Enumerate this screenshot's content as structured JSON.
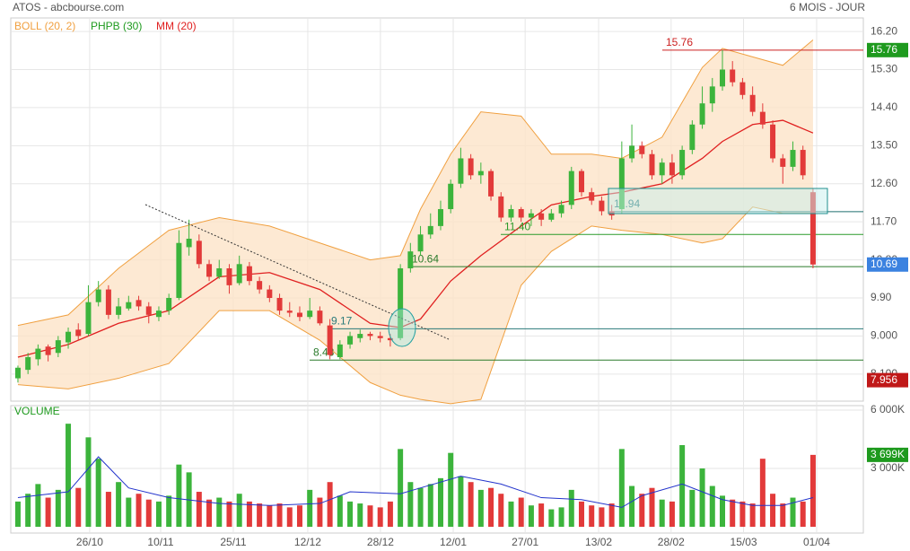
{
  "chart_data": {
    "type": "candlestick",
    "title": "ATOS - abcbourse.com",
    "period": "6 MOIS - JOUR",
    "candles": {
      "up_color": "#3cb43c",
      "down_color": "#e23a3a",
      "open": [
        8.0,
        8.2,
        8.45,
        8.75,
        8.6,
        8.85,
        9.15,
        9.05,
        9.8,
        10.1,
        9.5,
        9.65,
        9.85,
        9.7,
        9.45,
        9.6,
        9.9,
        11.1,
        11.25,
        10.7,
        10.4,
        10.6,
        10.25,
        10.65,
        10.3,
        10.1,
        9.9,
        9.6,
        9.55,
        9.45,
        9.6,
        9.25,
        8.5,
        8.8,
        8.95,
        9.05,
        9.0,
        8.95,
        8.95,
        10.6,
        11.0,
        11.4,
        11.6,
        12.0,
        12.6,
        13.2,
        12.8,
        12.9,
        12.3,
        11.8,
        12.0,
        11.8,
        11.9,
        11.75,
        11.9,
        12.1,
        12.9,
        12.4,
        12.2,
        11.95,
        12.0,
        13.2,
        13.5,
        13.3,
        12.8,
        13.1,
        12.8,
        13.4,
        14.0,
        14.5,
        14.9,
        15.3,
        15.0,
        14.7,
        14.3,
        14.0,
        13.2,
        13.0,
        13.4,
        12.4
      ],
      "high": [
        8.3,
        8.6,
        8.8,
        8.8,
        9.0,
        9.2,
        9.3,
        10.2,
        10.3,
        10.2,
        9.9,
        9.95,
        9.95,
        9.8,
        9.7,
        10.0,
        11.5,
        11.75,
        11.4,
        10.8,
        10.8,
        10.7,
        10.9,
        10.75,
        10.4,
        10.2,
        10.0,
        9.8,
        9.7,
        9.9,
        9.7,
        9.4,
        8.9,
        9.1,
        9.15,
        9.1,
        9.1,
        9.05,
        10.7,
        11.2,
        11.6,
        11.9,
        12.2,
        12.7,
        13.45,
        13.3,
        13.1,
        12.95,
        12.4,
        12.1,
        12.05,
        12.0,
        12.0,
        12.0,
        12.2,
        13.0,
        12.95,
        12.5,
        12.3,
        12.1,
        13.6,
        14.0,
        13.6,
        13.4,
        13.2,
        13.3,
        13.5,
        14.1,
        14.9,
        15.1,
        15.76,
        15.5,
        15.1,
        14.9,
        14.5,
        14.1,
        13.3,
        13.6,
        13.5,
        12.5
      ],
      "low": [
        7.9,
        8.1,
        8.3,
        8.4,
        8.5,
        8.7,
        8.9,
        9.0,
        9.7,
        9.4,
        9.4,
        9.6,
        9.6,
        9.3,
        9.35,
        9.5,
        9.85,
        10.9,
        10.6,
        10.3,
        10.35,
        10.0,
        10.2,
        10.2,
        10.0,
        9.8,
        9.5,
        9.45,
        9.35,
        9.4,
        9.25,
        8.45,
        8.45,
        8.7,
        8.85,
        8.9,
        8.85,
        8.75,
        8.9,
        10.5,
        10.9,
        11.3,
        11.5,
        11.9,
        12.5,
        12.7,
        12.6,
        12.2,
        11.7,
        11.7,
        11.7,
        11.6,
        11.6,
        11.7,
        11.8,
        12.0,
        12.3,
        12.1,
        11.85,
        11.75,
        11.9,
        13.1,
        13.2,
        12.7,
        12.6,
        12.6,
        12.7,
        13.3,
        13.9,
        14.3,
        14.8,
        14.9,
        14.6,
        14.2,
        13.9,
        13.1,
        12.6,
        12.9,
        12.7,
        10.6
      ],
      "close": [
        8.25,
        8.5,
        8.7,
        8.55,
        8.9,
        9.1,
        9.0,
        9.8,
        10.1,
        9.5,
        9.7,
        9.8,
        9.7,
        9.5,
        9.6,
        9.9,
        11.2,
        11.3,
        10.7,
        10.4,
        10.6,
        10.2,
        10.7,
        10.3,
        10.1,
        9.9,
        9.6,
        9.55,
        9.45,
        9.6,
        9.3,
        8.55,
        8.8,
        9.0,
        9.05,
        9.0,
        8.95,
        8.9,
        10.6,
        11.0,
        11.4,
        11.6,
        12.0,
        12.6,
        13.2,
        12.8,
        12.9,
        12.3,
        11.8,
        12.0,
        11.8,
        11.9,
        11.75,
        11.9,
        12.1,
        12.9,
        12.4,
        12.2,
        11.95,
        11.85,
        13.2,
        13.5,
        13.3,
        12.8,
        13.1,
        12.8,
        13.4,
        14.0,
        14.5,
        14.9,
        15.3,
        15.0,
        14.7,
        14.3,
        14.0,
        13.2,
        13.0,
        13.4,
        12.8,
        10.69
      ]
    },
    "bollinger": {
      "name": "BOLL (20, 2)",
      "color": "#f0a040",
      "fill": "#fde3c8",
      "x": [
        0,
        5,
        10,
        15,
        20,
        25,
        30,
        35,
        38,
        40,
        43,
        46,
        50,
        53,
        57,
        60,
        64,
        68,
        70,
        73,
        76,
        79
      ],
      "upper": [
        9.25,
        9.5,
        10.6,
        11.5,
        11.8,
        11.6,
        11.2,
        10.8,
        10.9,
        12.0,
        13.3,
        14.3,
        14.2,
        13.3,
        13.3,
        13.2,
        13.7,
        15.35,
        15.8,
        15.6,
        15.4,
        16.0
      ],
      "lower": [
        7.85,
        7.75,
        8.0,
        8.35,
        9.6,
        9.6,
        8.9,
        7.9,
        7.6,
        7.5,
        7.4,
        7.5,
        10.2,
        11.0,
        11.6,
        11.5,
        11.4,
        11.2,
        11.3,
        12.05,
        11.9,
        11.9
      ]
    },
    "phpb": {
      "name": "PHPB (30)",
      "color": "#1e9a1e"
    },
    "mm": {
      "name": "MM (20)",
      "color": "#e02020",
      "x": [
        0,
        5,
        10,
        15,
        20,
        25,
        30,
        35,
        38,
        40,
        43,
        46,
        50,
        53,
        57,
        60,
        64,
        68,
        70,
        73,
        76,
        79
      ],
      "values": [
        8.5,
        8.8,
        9.3,
        9.6,
        10.4,
        10.5,
        10.1,
        9.3,
        9.2,
        9.4,
        10.3,
        10.9,
        11.6,
        12.1,
        12.3,
        12.4,
        12.6,
        13.2,
        13.6,
        14.0,
        14.1,
        13.8
      ]
    },
    "xlim": [
      -0.71,
      84
    ],
    "xticks": [
      {
        "value": 7.13,
        "label": "26/10"
      },
      {
        "value": 14.18,
        "label": "10/11"
      },
      {
        "value": 21.4,
        "label": "25/11"
      },
      {
        "value": 28.8,
        "label": "12/12"
      },
      {
        "value": 36.02,
        "label": "28/12"
      },
      {
        "value": 43.25,
        "label": "12/01"
      },
      {
        "value": 50.4,
        "label": "27/01"
      },
      {
        "value": 57.7,
        "label": "13/02"
      },
      {
        "value": 64.9,
        "label": "28/02"
      },
      {
        "value": 72.1,
        "label": "15/03"
      },
      {
        "value": 79.36,
        "label": "01/04"
      }
    ],
    "ylim": [
      7.46,
      16.52
    ],
    "yticks": [
      {
        "value": 16.2,
        "label": "16.20"
      },
      {
        "value": 15.3,
        "label": "15.30"
      },
      {
        "value": 14.4,
        "label": "14.40"
      },
      {
        "value": 13.5,
        "label": "13.50"
      },
      {
        "value": 12.6,
        "label": "12.60"
      },
      {
        "value": 11.7,
        "label": "11.70"
      },
      {
        "value": 10.8,
        "label": "10.80"
      },
      {
        "value": 9.9,
        "label": "9.90"
      },
      {
        "value": 9.0,
        "label": "9.000"
      },
      {
        "value": 8.1,
        "label": "8.100"
      }
    ],
    "grid": true,
    "levels": [
      {
        "value": 15.76,
        "color": "#cc2222"
      },
      {
        "value": 11.94,
        "color": "#1f6f6f"
      },
      {
        "value": 11.4,
        "label": "11.40",
        "color": "#2a9a2a"
      },
      {
        "value": 10.64,
        "color": "#2a7a2a"
      },
      {
        "value": 9.17,
        "color": "#2a7a7a"
      },
      {
        "value": 8.43,
        "color": "#2a7a2a"
      }
    ],
    "tags": [
      {
        "value": 15.76,
        "color": "#1e9a1e"
      },
      {
        "value": 10.69,
        "color": "#3b82e0"
      },
      {
        "value": 7.956,
        "color": "#c01818"
      }
    ],
    "volume": {
      "title": "VOLUME",
      "values": [
        1300,
        1700,
        2200,
        1500,
        1900,
        5300,
        2000,
        4600,
        3500,
        1800,
        2300,
        1500,
        1700,
        1400,
        1300,
        1600,
        3200,
        2800,
        1800,
        1400,
        1500,
        1300,
        1700,
        1300,
        1200,
        1100,
        1200,
        1000,
        1100,
        1900,
        1500,
        2300,
        1600,
        1300,
        1200,
        1100,
        1000,
        1300,
        4000,
        2300,
        2000,
        2200,
        2500,
        3800,
        2600,
        2300,
        1900,
        2000,
        1700,
        1300,
        1500,
        1100,
        1200,
        900,
        1000,
        1900,
        1300,
        1100,
        1000,
        1200,
        4000,
        2100,
        1700,
        2000,
        1400,
        1300,
        4200,
        1900,
        3000,
        2100,
        1600,
        1400,
        1300,
        1200,
        3500,
        1700,
        1200,
        1500,
        1300,
        3699
      ],
      "ylim": [
        -320,
        6230
      ],
      "yticks": [
        {
          "value": 3000,
          "label": "3 000K"
        },
        {
          "value": 6000,
          "label": "6 000K"
        }
      ],
      "ma": {
        "color": "#2233cc",
        "x": [
          0,
          5,
          8,
          11,
          15,
          20,
          25,
          30,
          33,
          38,
          40,
          44,
          48,
          52,
          56,
          60,
          62,
          66,
          70,
          73,
          76,
          79
        ],
        "values": [
          1500,
          1800,
          3600,
          2000,
          1500,
          1200,
          1100,
          1200,
          1800,
          1700,
          2000,
          2600,
          2200,
          1500,
          1400,
          1000,
          1600,
          2200,
          1400,
          1100,
          1100,
          1500
        ]
      },
      "tag": {
        "value": 3699,
        "label": "3 699K",
        "color": "#1e9a1e"
      }
    }
  }
}
